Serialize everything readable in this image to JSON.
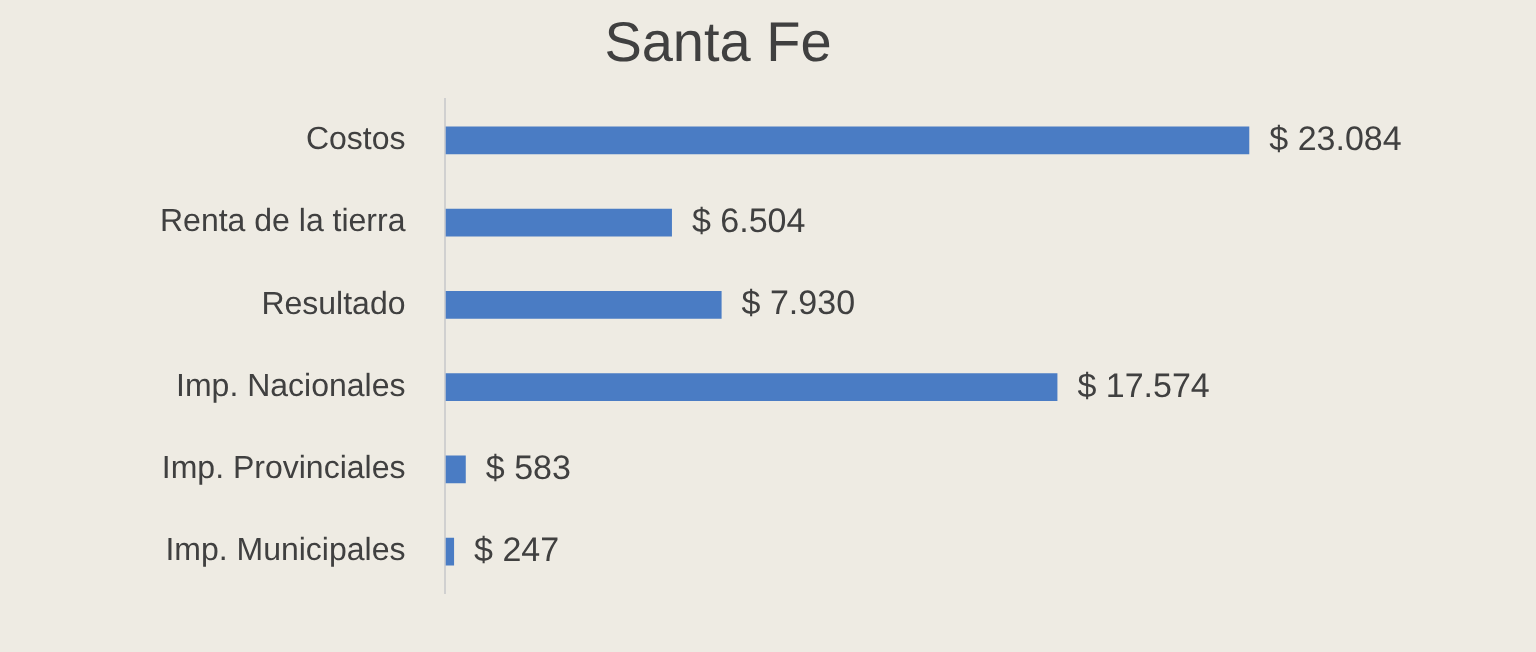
{
  "chart_data": {
    "type": "bar",
    "orientation": "horizontal",
    "title": "Santa Fe",
    "categories": [
      "Costos",
      "Renta de la tierra",
      "Resultado",
      "Imp. Nacionales",
      "Imp. Provinciales",
      "Imp. Municipales"
    ],
    "values": [
      23084,
      6504,
      7930,
      17574,
      583,
      247
    ],
    "value_labels": [
      "$ 23.084",
      "$ 6.504",
      "$ 7.930",
      "$ 17.574",
      "$ 583",
      "$ 247"
    ],
    "color": "#4a7cc4",
    "grid": false,
    "legend": false,
    "tick_labels": "y"
  }
}
